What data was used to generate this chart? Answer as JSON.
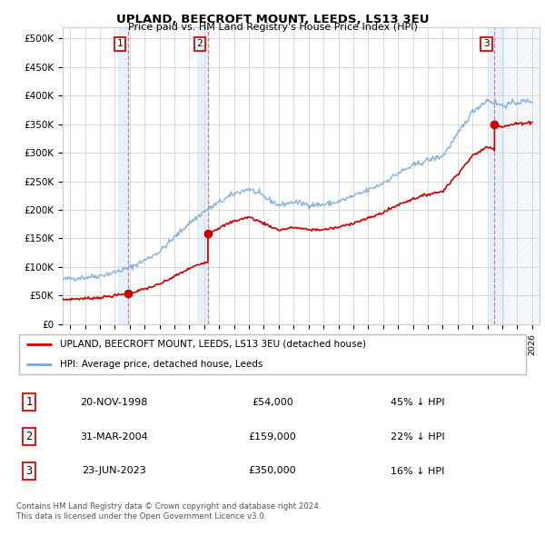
{
  "title": "UPLAND, BEECROFT MOUNT, LEEDS, LS13 3EU",
  "subtitle": "Price paid vs. HM Land Registry's House Price Index (HPI)",
  "xlim": [
    1994.5,
    2026.5
  ],
  "ylim": [
    0,
    520000
  ],
  "yticks": [
    0,
    50000,
    100000,
    150000,
    200000,
    250000,
    300000,
    350000,
    400000,
    450000,
    500000
  ],
  "ytick_labels": [
    "£0",
    "£50K",
    "£100K",
    "£150K",
    "£200K",
    "£250K",
    "£300K",
    "£350K",
    "£400K",
    "£450K",
    "£500K"
  ],
  "sale_dates": [
    1998.896,
    2004.247,
    2023.478
  ],
  "sale_prices": [
    54000,
    159000,
    350000
  ],
  "sale_labels": [
    "1",
    "2",
    "3"
  ],
  "hpi_color": "#7aaadd",
  "price_color": "#cc0000",
  "legend_items": [
    "UPLAND, BEECROFT MOUNT, LEEDS, LS13 3EU (detached house)",
    "HPI: Average price, detached house, Leeds"
  ],
  "table_rows": [
    [
      "1",
      "20-NOV-1998",
      "£54,000",
      "45% ↓ HPI"
    ],
    [
      "2",
      "31-MAR-2004",
      "£159,000",
      "22% ↓ HPI"
    ],
    [
      "3",
      "23-JUN-2023",
      "£350,000",
      "16% ↓ HPI"
    ]
  ],
  "footnote": "Contains HM Land Registry data © Crown copyright and database right 2024.\nThis data is licensed under the Open Government Licence v3.0.",
  "bg_shade_color": "#d8e8f5"
}
